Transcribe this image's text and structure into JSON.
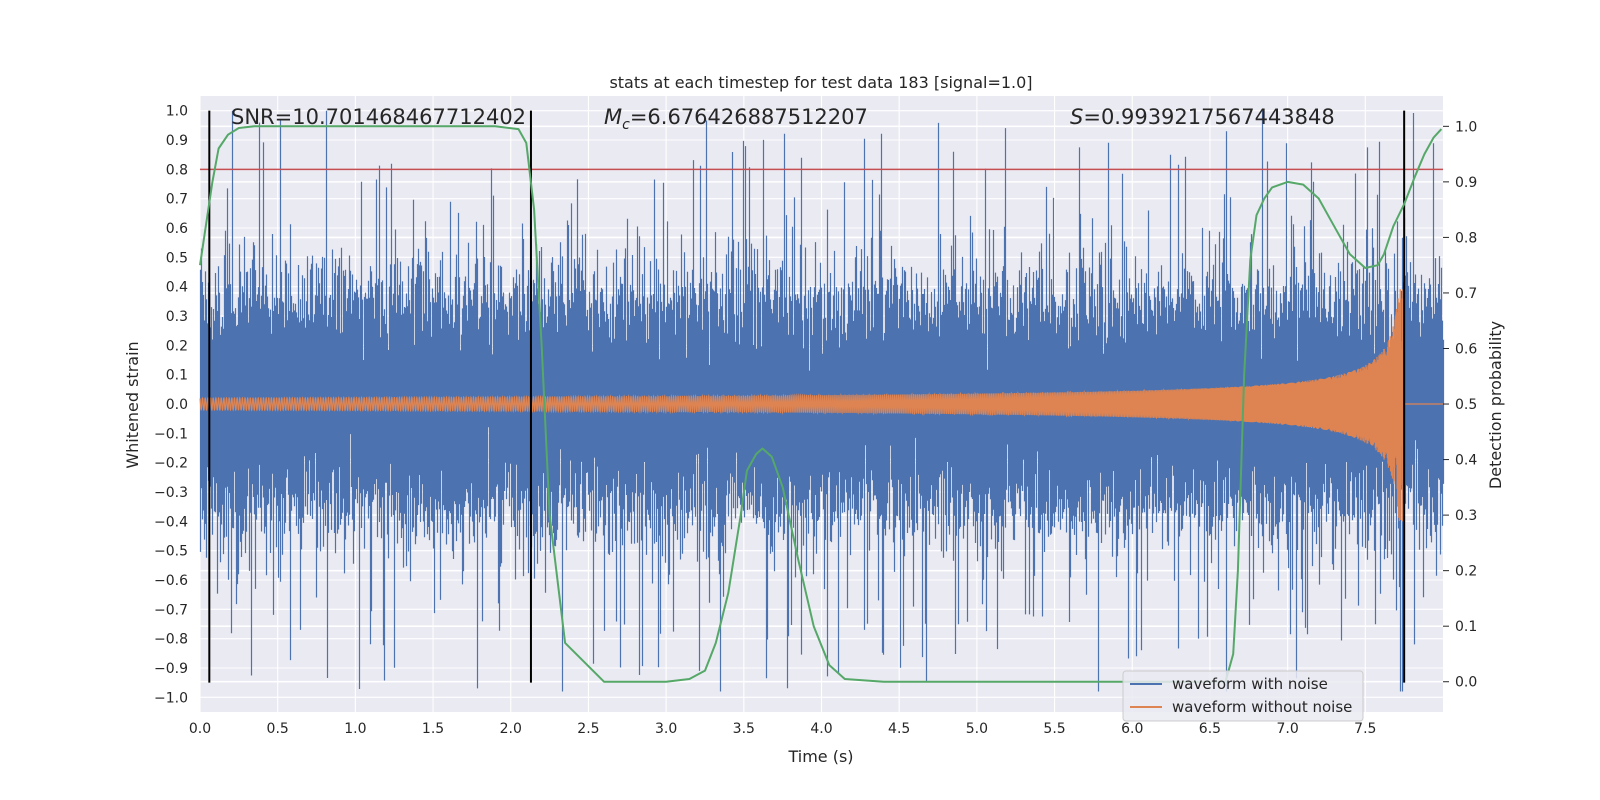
{
  "chart_data": {
    "type": "line",
    "title": "stats at each timestep for test data 183 [signal=1.0]",
    "xlabel": "Time (s)",
    "ylabel": "Whitened strain",
    "y2label": "Detection probability",
    "xlim": [
      0.0,
      8.0
    ],
    "ylim": [
      -1.05,
      1.05
    ],
    "y2lim": [
      -0.0545,
      1.0546
    ],
    "x_ticks": [
      0.0,
      0.5,
      1.0,
      1.5,
      2.0,
      2.5,
      3.0,
      3.5,
      4.0,
      4.5,
      5.0,
      5.5,
      6.0,
      6.5,
      7.0,
      7.5
    ],
    "y_ticks": [
      -1.0,
      -0.9,
      -0.8,
      -0.7,
      -0.6,
      -0.5,
      -0.4,
      -0.3,
      -0.2,
      -0.1,
      0.0,
      0.1,
      0.2,
      0.3,
      0.4,
      0.5,
      0.6,
      0.7,
      0.8,
      0.9,
      1.0
    ],
    "y2_ticks": [
      0.0,
      0.1,
      0.2,
      0.3,
      0.4,
      0.5,
      0.6,
      0.7,
      0.8,
      0.9,
      1.0
    ],
    "annotations": {
      "snr": "SNR=10.701468467712402",
      "mc_symbol": "M",
      "mc_sub": "c",
      "mc_value": "=6.676426887512207",
      "s_symbol": "S",
      "s_value": "=0.9939217567443848"
    },
    "vertical_lines_x": [
      0.06,
      2.13,
      7.75
    ],
    "threshold_y": 0.8,
    "series": [
      {
        "name": "waveform with noise",
        "color": "#4c72b0",
        "kind": "noisy strain, amplitude ~0.3, spikes up to 1.0"
      },
      {
        "name": "waveform without noise",
        "color": "#dd8452",
        "kind": "chirp ending at 7.75 s, amplitude grows from 0.02 to 0.4"
      },
      {
        "name": "Detection probability",
        "color": "#55a868",
        "axis": "right",
        "x": [
          0.0,
          0.08,
          0.12,
          0.18,
          0.25,
          0.35,
          0.5,
          1.0,
          1.5,
          1.9,
          2.05,
          2.1,
          2.15,
          2.2,
          2.25,
          2.35,
          2.6,
          3.0,
          3.15,
          3.25,
          3.32,
          3.4,
          3.48,
          3.52,
          3.58,
          3.62,
          3.68,
          3.75,
          3.85,
          3.95,
          4.05,
          4.15,
          4.4,
          5.0,
          5.6,
          6.2,
          6.6,
          6.65,
          6.68,
          6.72,
          6.76,
          6.8,
          6.85,
          6.9,
          7.0,
          7.1,
          7.2,
          7.3,
          7.4,
          7.5,
          7.58,
          7.62,
          7.68,
          7.75,
          7.82,
          7.88,
          7.94,
          7.99
        ],
        "y": [
          0.75,
          0.9,
          0.96,
          0.985,
          0.997,
          1.0,
          1.0,
          1.0,
          1.0,
          1.0,
          0.995,
          0.97,
          0.85,
          0.6,
          0.3,
          0.07,
          0.0,
          0.0,
          0.005,
          0.02,
          0.07,
          0.16,
          0.3,
          0.38,
          0.41,
          0.42,
          0.405,
          0.35,
          0.22,
          0.1,
          0.03,
          0.005,
          0.0,
          0.0,
          0.0,
          0.0,
          0.0,
          0.05,
          0.2,
          0.55,
          0.76,
          0.84,
          0.87,
          0.89,
          0.9,
          0.895,
          0.87,
          0.82,
          0.77,
          0.745,
          0.75,
          0.77,
          0.82,
          0.86,
          0.91,
          0.95,
          0.98,
          0.995
        ]
      }
    ],
    "legend": [
      "waveform with noise",
      "waveform without noise"
    ],
    "colors": {
      "background": "#eaeaf2",
      "grid": "#ffffff",
      "threshold": "#c44e52",
      "vline": "#000000"
    }
  }
}
